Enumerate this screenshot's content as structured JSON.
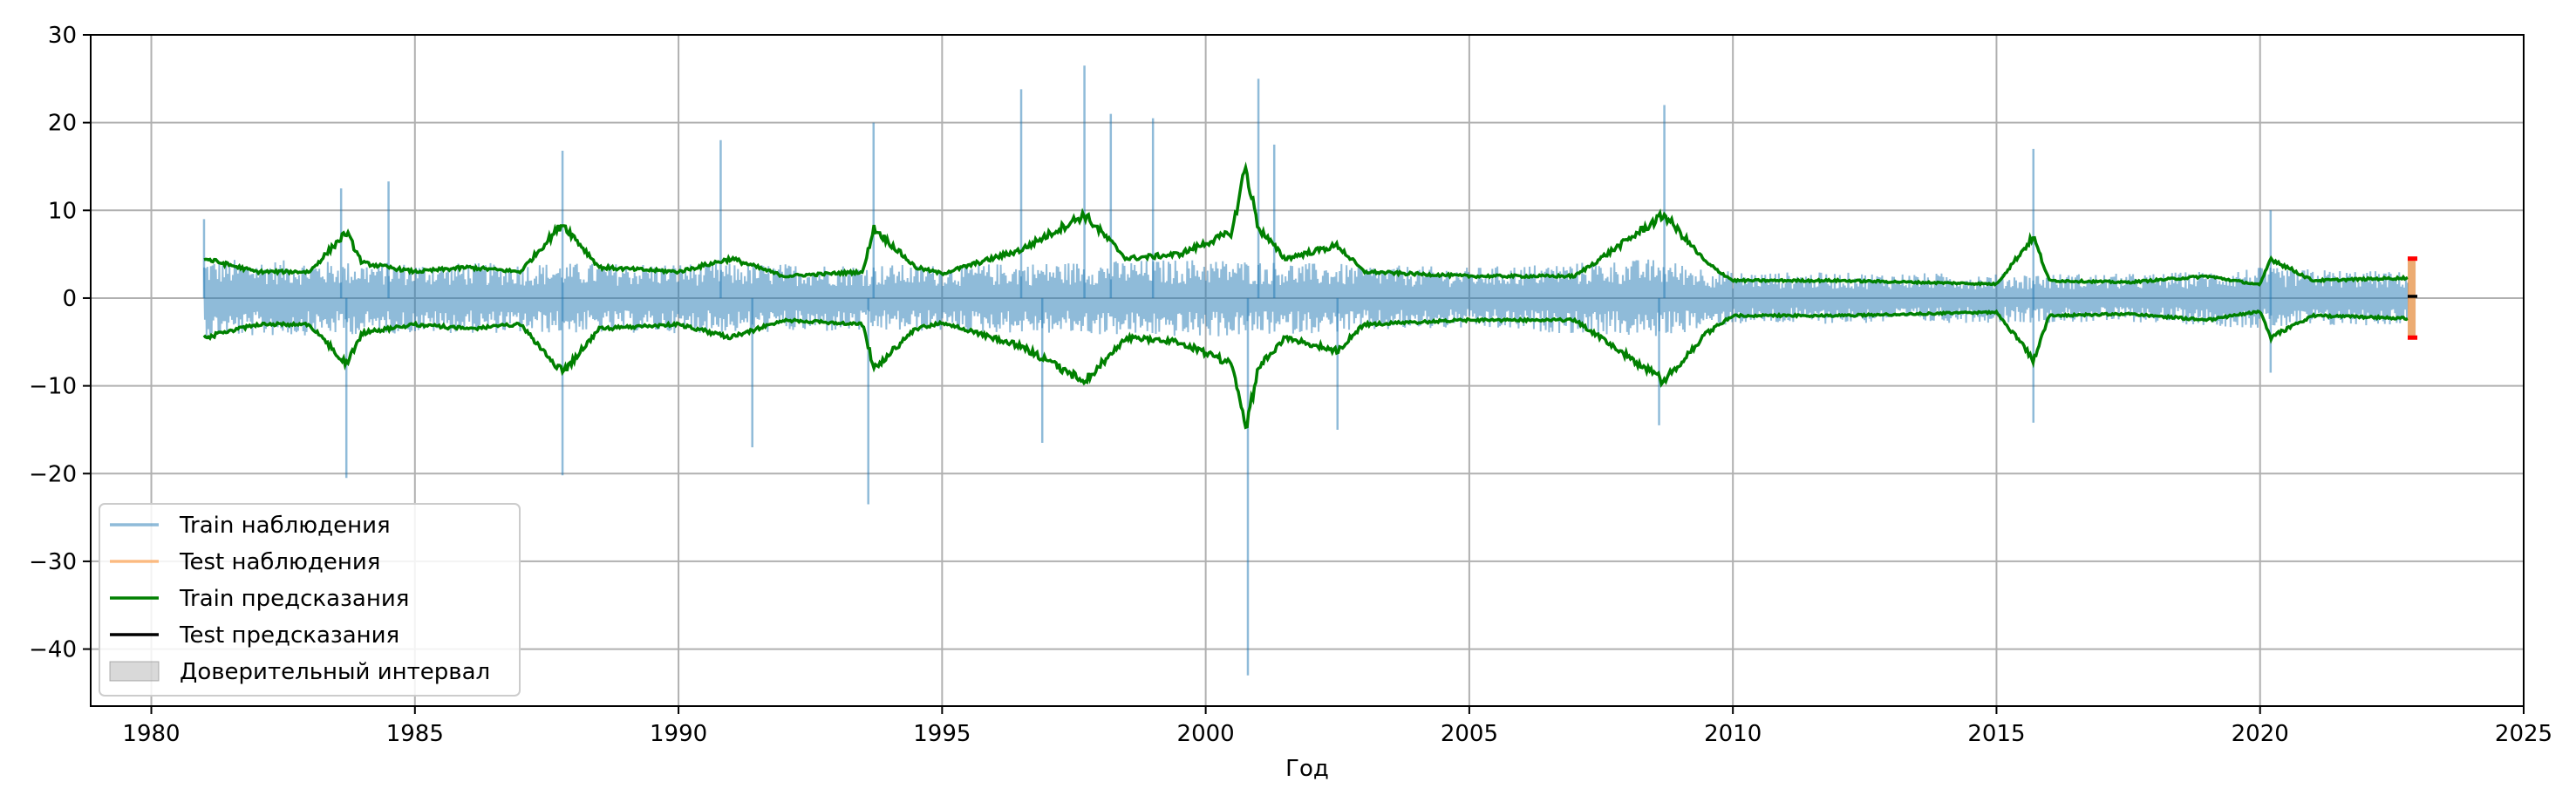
{
  "chart_data": {
    "type": "line",
    "title": "",
    "xlabel": "Год",
    "ylabel": "",
    "xlim": [
      1978.85,
      2025.0
    ],
    "ylim": [
      -46.5,
      30
    ],
    "grid": true,
    "legend_position": "lower-left",
    "x_ticks": [
      1980,
      1985,
      1990,
      1995,
      2000,
      2005,
      2010,
      2015,
      2020,
      2025
    ],
    "y_ticks": [
      30,
      20,
      10,
      0,
      -10,
      -20,
      -30,
      -40
    ],
    "x_tick_labels": [
      "1980",
      "1985",
      "1990",
      "1995",
      "2000",
      "2005",
      "2010",
      "2015",
      "2020",
      "2025"
    ],
    "y_tick_labels": [
      "30",
      "20",
      "10",
      "0",
      "−10",
      "−20",
      "−30",
      "−40"
    ],
    "series": [
      {
        "name": "Train наблюдения",
        "color": "#1f77b4",
        "opacity": 0.5,
        "x_start": 1981.0,
        "x_end": 2022.8,
        "typical_band": [
          [
            1981.0,
            4.5
          ],
          [
            1985.0,
            4.0
          ],
          [
            1990.0,
            4.0
          ],
          [
            1995.0,
            3.8
          ],
          [
            2000.0,
            4.5
          ],
          [
            2002.0,
            4.0
          ],
          [
            2005.0,
            3.5
          ],
          [
            2008.5,
            4.5
          ],
          [
            2010.0,
            3.0
          ],
          [
            2015.0,
            2.8
          ],
          [
            2018.0,
            2.8
          ],
          [
            2020.0,
            3.5
          ],
          [
            2022.8,
            3.0
          ]
        ],
        "spikes": [
          [
            1981.0,
            9
          ],
          [
            1983.6,
            12.5
          ],
          [
            1983.7,
            -20.5
          ],
          [
            1984.5,
            13.3
          ],
          [
            1987.8,
            16.8
          ],
          [
            1987.8,
            -20.2
          ],
          [
            1990.8,
            18
          ],
          [
            1991.4,
            -17
          ],
          [
            1993.7,
            20
          ],
          [
            1993.6,
            -23.5
          ],
          [
            1996.5,
            23.8
          ],
          [
            1996.9,
            -16.5
          ],
          [
            1997.7,
            26.5
          ],
          [
            1998.2,
            21
          ],
          [
            1999.0,
            20.5
          ],
          [
            2000.8,
            -43.0
          ],
          [
            2001.0,
            25.0
          ],
          [
            2001.3,
            17.5
          ],
          [
            2002.5,
            -15
          ],
          [
            2008.7,
            22
          ],
          [
            2008.6,
            -14.5
          ],
          [
            2015.7,
            17.0
          ],
          [
            2015.7,
            -14.2
          ],
          [
            2020.2,
            10
          ],
          [
            2020.2,
            -8.5
          ]
        ]
      },
      {
        "name": "Test наблюдения",
        "color": "#ff7f0e",
        "opacity": 0.5,
        "x_start": 2022.8,
        "x_end": 2022.95,
        "y_range": [
          -4.5,
          4.5
        ]
      },
      {
        "name": "Train предсказания",
        "color": "#008000",
        "opacity": 1,
        "band_upper": [
          [
            1981.0,
            4.5
          ],
          [
            1982.0,
            3.0
          ],
          [
            1983.0,
            3.0
          ],
          [
            1983.7,
            7.5
          ],
          [
            1984.0,
            4.0
          ],
          [
            1985.0,
            3.0
          ],
          [
            1986.0,
            3.5
          ],
          [
            1987.0,
            3.0
          ],
          [
            1987.8,
            8.5
          ],
          [
            1988.5,
            3.5
          ],
          [
            1990.0,
            3.0
          ],
          [
            1991.0,
            4.5
          ],
          [
            1992.0,
            2.5
          ],
          [
            1993.5,
            3.0
          ],
          [
            1993.7,
            8.0
          ],
          [
            1994.5,
            3.5
          ],
          [
            1995.0,
            2.8
          ],
          [
            1996.5,
            5.5
          ],
          [
            1997.7,
            9.5
          ],
          [
            1998.5,
            4.5
          ],
          [
            1999.5,
            5.0
          ],
          [
            2000.5,
            7.5
          ],
          [
            2000.75,
            15.0
          ],
          [
            2001.0,
            8.0
          ],
          [
            2001.5,
            4.5
          ],
          [
            2002.5,
            6.0
          ],
          [
            2003.0,
            3.0
          ],
          [
            2005.0,
            2.5
          ],
          [
            2007.0,
            2.5
          ],
          [
            2008.7,
            9.5
          ],
          [
            2009.5,
            4.0
          ],
          [
            2010.0,
            2.0
          ],
          [
            2012.0,
            2.0
          ],
          [
            2015.0,
            1.6
          ],
          [
            2015.7,
            7.0
          ],
          [
            2016.0,
            2.0
          ],
          [
            2017.5,
            1.8
          ],
          [
            2019.0,
            2.5
          ],
          [
            2020.0,
            1.5
          ],
          [
            2020.2,
            4.5
          ],
          [
            2021.0,
            2.0
          ],
          [
            2022.8,
            2.3
          ]
        ],
        "band_lower": [
          [
            1981.0,
            -4.5
          ],
          [
            1982.0,
            -3.0
          ],
          [
            1983.0,
            -3.0
          ],
          [
            1983.7,
            -7.5
          ],
          [
            1984.0,
            -4.0
          ],
          [
            1985.0,
            -3.0
          ],
          [
            1986.0,
            -3.5
          ],
          [
            1987.0,
            -3.0
          ],
          [
            1987.8,
            -8.5
          ],
          [
            1988.5,
            -3.5
          ],
          [
            1990.0,
            -3.0
          ],
          [
            1991.0,
            -4.5
          ],
          [
            1992.0,
            -2.5
          ],
          [
            1993.5,
            -3.0
          ],
          [
            1993.7,
            -8.0
          ],
          [
            1994.5,
            -3.5
          ],
          [
            1995.0,
            -2.8
          ],
          [
            1996.5,
            -5.5
          ],
          [
            1997.7,
            -9.5
          ],
          [
            1998.5,
            -4.5
          ],
          [
            1999.5,
            -5.0
          ],
          [
            2000.5,
            -7.5
          ],
          [
            2000.75,
            -15.0
          ],
          [
            2001.0,
            -8.0
          ],
          [
            2001.5,
            -4.5
          ],
          [
            2002.5,
            -6.0
          ],
          [
            2003.0,
            -3.0
          ],
          [
            2005.0,
            -2.5
          ],
          [
            2007.0,
            -2.5
          ],
          [
            2008.7,
            -9.5
          ],
          [
            2009.5,
            -4.0
          ],
          [
            2010.0,
            -2.0
          ],
          [
            2012.0,
            -2.0
          ],
          [
            2015.0,
            -1.6
          ],
          [
            2015.7,
            -7.0
          ],
          [
            2016.0,
            -2.0
          ],
          [
            2017.5,
            -1.8
          ],
          [
            2019.0,
            -2.5
          ],
          [
            2020.0,
            -1.5
          ],
          [
            2020.2,
            -4.5
          ],
          [
            2021.0,
            -2.0
          ],
          [
            2022.8,
            -2.3
          ]
        ]
      },
      {
        "name": "Test предсказания",
        "color": "#000000",
        "opacity": 1,
        "x": [
          2022.8,
          2022.95
        ],
        "y": [
          0.2,
          0.2
        ]
      },
      {
        "name": "Доверительный интервал",
        "type": "area",
        "color": "#808080",
        "opacity": 0.3,
        "x_range": [
          2022.8,
          2022.95
        ],
        "y_range": [
          -4.5,
          4.5
        ],
        "edge_color": "#ff0000"
      }
    ]
  }
}
